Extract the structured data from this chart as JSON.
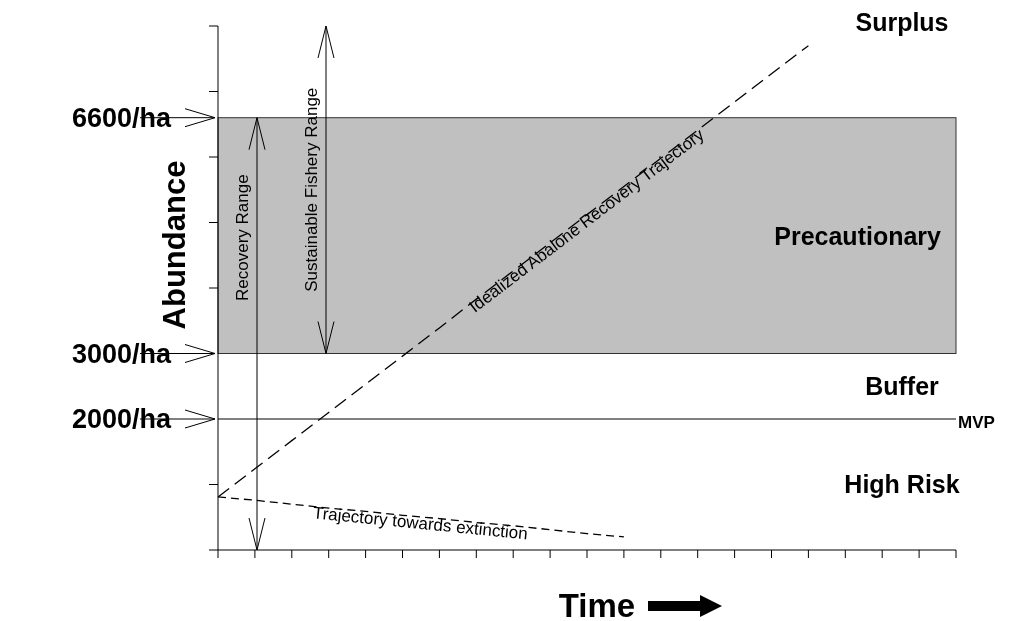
{
  "chart_data": {
    "type": "line",
    "xlabel": "Time",
    "ylabel": "Abundance",
    "categories": [
      null,
      null,
      null,
      null,
      null,
      null,
      null,
      null,
      null,
      null,
      null,
      null,
      null,
      null,
      null,
      null,
      null,
      null,
      null,
      null,
      null
    ],
    "ylim": [
      0,
      8000
    ],
    "yticks": [
      {
        "value": 0,
        "label": null
      },
      {
        "value": 1000,
        "label": null
      },
      {
        "value": 2000,
        "label": "2000/ha"
      },
      {
        "value": 3000,
        "label": "3000/ha"
      },
      {
        "value": 4000,
        "label": null
      },
      {
        "value": 5000,
        "label": null
      },
      {
        "value": 6000,
        "label": null
      },
      {
        "value": 6600,
        "label": "6600/ha"
      },
      {
        "value": 7000,
        "label": null
      },
      {
        "value": 8000,
        "label": null
      }
    ],
    "grid": false,
    "line_style": "dashed",
    "marker": "none",
    "series": [
      {
        "name": "Idealized Abalone Recovery Trajectory",
        "color": "#000000",
        "values": [
          810,
          1240,
          1670,
          2100,
          2530,
          2960,
          3390,
          3830,
          4260,
          4690,
          5120,
          5550,
          5980,
          6410,
          6840,
          7270,
          7700,
          null,
          null,
          null,
          null
        ]
      },
      {
        "name": "Trajectory towards extinction",
        "color": "#000000",
        "values": [
          810,
          760,
          700,
          640,
          590,
          530,
          480,
          420,
          370,
          310,
          250,
          200,
          null,
          null,
          null,
          null,
          null,
          null,
          null,
          null,
          null
        ]
      }
    ],
    "bands": [
      {
        "axis": "y",
        "from": 3000,
        "to": 6600,
        "label": "Precautionary",
        "color": "#c0c0c0"
      }
    ],
    "ref_lines": [
      {
        "axis": "y",
        "value": 2000,
        "label": "MVP",
        "color": "#000000"
      }
    ],
    "annotations": [
      "Recovery Range",
      "Sustainable Fishery Range",
      "Surplus",
      "Buffer",
      "High Risk"
    ]
  }
}
